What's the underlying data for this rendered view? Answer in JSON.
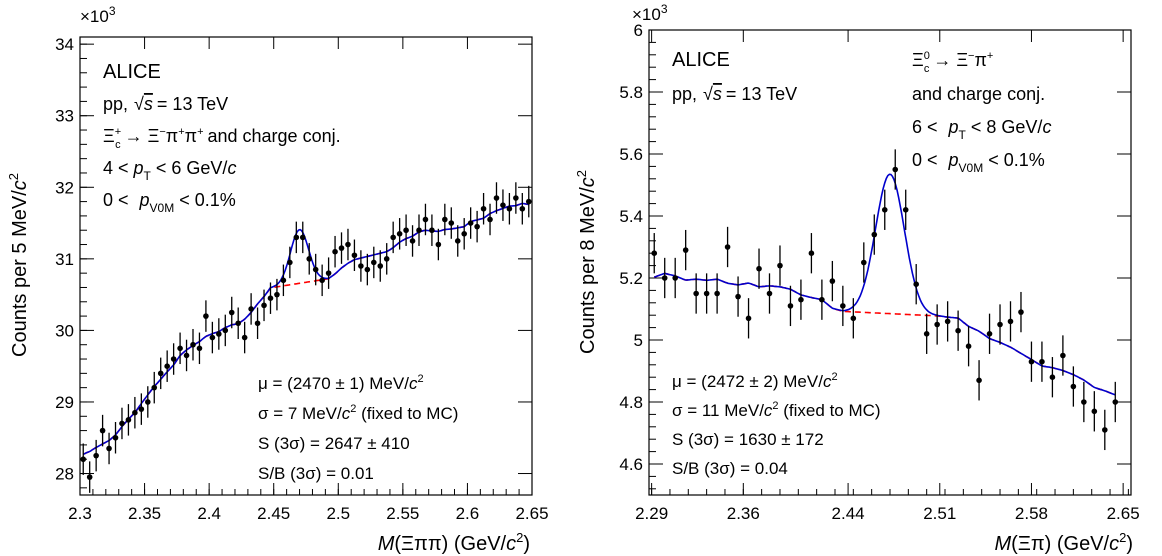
{
  "chart_data": [
    {
      "type": "scatter",
      "xlabel_prefix": "M",
      "xlabel_text": "(Ξππ) (GeV/",
      "xlabel_c": "c",
      "xlabel_pow": "2",
      "xlabel_close": ")",
      "ylabel_text": "Counts per 5 MeV/",
      "ylabel_c": "c",
      "exponent_base": "×10",
      "exponent_pow": "3",
      "xlim": [
        2.3,
        2.65
      ],
      "ylim": [
        27.7,
        34.1
      ],
      "xticks": [
        2.3,
        2.35,
        2.4,
        2.45,
        2.5,
        2.55,
        2.6,
        2.65
      ],
      "xtick_labels": [
        "2.3",
        "2.35",
        "2.4",
        "2.45",
        "2.5",
        "2.55",
        "2.6",
        "2.65"
      ],
      "yticks": [
        28,
        29,
        30,
        31,
        32,
        33,
        34
      ],
      "ytick_labels": [
        "28",
        "29",
        "30",
        "31",
        "32",
        "33",
        "34"
      ],
      "annotations": {
        "experiment": "ALICE",
        "collision": "pp,",
        "energy": "= 13 TeV",
        "decay": "Ξc⁺ → Ξ⁻π⁺π⁺ and charge conj.",
        "pt_range": "4 < pT < 6 GeV/c",
        "mult_range": "0 < pV0M < 0.1%",
        "mu": "μ = (2470 ± 1) MeV/c²",
        "sigma": "σ = 7 MeV/c² (fixed to MC)",
        "signal": "S (3σ) = 2647 ± 410",
        "sb": "S/B (3σ) = 0.01"
      },
      "fit": {
        "mu": 2.47,
        "sigma": 0.007,
        "peak_amplitude": 0.75
      },
      "colors": {
        "data": "#000000",
        "total_fit": "#0000cc",
        "background_fit": "#ff0000"
      },
      "points": [
        {
          "x": 2.3025,
          "y": 28.2,
          "e": 0.22
        },
        {
          "x": 2.3075,
          "y": 27.95,
          "e": 0.22
        },
        {
          "x": 2.3125,
          "y": 28.25,
          "e": 0.22
        },
        {
          "x": 2.3175,
          "y": 28.6,
          "e": 0.22
        },
        {
          "x": 2.3225,
          "y": 28.35,
          "e": 0.22
        },
        {
          "x": 2.3275,
          "y": 28.5,
          "e": 0.22
        },
        {
          "x": 2.3325,
          "y": 28.7,
          "e": 0.22
        },
        {
          "x": 2.3375,
          "y": 28.75,
          "e": 0.22
        },
        {
          "x": 2.3425,
          "y": 28.85,
          "e": 0.22
        },
        {
          "x": 2.3475,
          "y": 28.9,
          "e": 0.22
        },
        {
          "x": 2.3525,
          "y": 29.0,
          "e": 0.22
        },
        {
          "x": 2.3575,
          "y": 29.2,
          "e": 0.22
        },
        {
          "x": 2.3625,
          "y": 29.4,
          "e": 0.22
        },
        {
          "x": 2.3675,
          "y": 29.5,
          "e": 0.22
        },
        {
          "x": 2.3725,
          "y": 29.6,
          "e": 0.22
        },
        {
          "x": 2.3775,
          "y": 29.75,
          "e": 0.22
        },
        {
          "x": 2.3825,
          "y": 29.65,
          "e": 0.22
        },
        {
          "x": 2.3875,
          "y": 29.8,
          "e": 0.22
        },
        {
          "x": 2.3925,
          "y": 29.75,
          "e": 0.22
        },
        {
          "x": 2.3975,
          "y": 30.2,
          "e": 0.22
        },
        {
          "x": 2.4025,
          "y": 29.9,
          "e": 0.22
        },
        {
          "x": 2.4075,
          "y": 29.95,
          "e": 0.22
        },
        {
          "x": 2.4125,
          "y": 30.0,
          "e": 0.22
        },
        {
          "x": 2.4175,
          "y": 30.25,
          "e": 0.22
        },
        {
          "x": 2.4225,
          "y": 30.1,
          "e": 0.22
        },
        {
          "x": 2.4275,
          "y": 29.9,
          "e": 0.22
        },
        {
          "x": 2.4325,
          "y": 30.3,
          "e": 0.22
        },
        {
          "x": 2.4375,
          "y": 30.1,
          "e": 0.22
        },
        {
          "x": 2.4425,
          "y": 30.35,
          "e": 0.22
        },
        {
          "x": 2.4475,
          "y": 30.45,
          "e": 0.22
        },
        {
          "x": 2.4525,
          "y": 30.5,
          "e": 0.22
        },
        {
          "x": 2.4575,
          "y": 30.7,
          "e": 0.22
        },
        {
          "x": 2.4625,
          "y": 30.95,
          "e": 0.22
        },
        {
          "x": 2.4675,
          "y": 31.3,
          "e": 0.22
        },
        {
          "x": 2.4725,
          "y": 31.3,
          "e": 0.22
        },
        {
          "x": 2.4775,
          "y": 31.0,
          "e": 0.22
        },
        {
          "x": 2.4825,
          "y": 30.85,
          "e": 0.22
        },
        {
          "x": 2.4875,
          "y": 30.7,
          "e": 0.22
        },
        {
          "x": 2.4925,
          "y": 30.8,
          "e": 0.22
        },
        {
          "x": 2.4975,
          "y": 31.1,
          "e": 0.22
        },
        {
          "x": 2.5025,
          "y": 31.15,
          "e": 0.22
        },
        {
          "x": 2.5075,
          "y": 31.2,
          "e": 0.22
        },
        {
          "x": 2.5125,
          "y": 31.05,
          "e": 0.22
        },
        {
          "x": 2.5175,
          "y": 30.9,
          "e": 0.22
        },
        {
          "x": 2.5225,
          "y": 30.85,
          "e": 0.22
        },
        {
          "x": 2.5275,
          "y": 30.95,
          "e": 0.22
        },
        {
          "x": 2.5325,
          "y": 30.9,
          "e": 0.22
        },
        {
          "x": 2.5375,
          "y": 31.0,
          "e": 0.22
        },
        {
          "x": 2.5425,
          "y": 31.3,
          "e": 0.22
        },
        {
          "x": 2.5475,
          "y": 31.35,
          "e": 0.22
        },
        {
          "x": 2.5525,
          "y": 31.4,
          "e": 0.22
        },
        {
          "x": 2.5575,
          "y": 31.25,
          "e": 0.22
        },
        {
          "x": 2.5625,
          "y": 31.4,
          "e": 0.22
        },
        {
          "x": 2.5675,
          "y": 31.55,
          "e": 0.22
        },
        {
          "x": 2.5725,
          "y": 31.4,
          "e": 0.22
        },
        {
          "x": 2.5775,
          "y": 31.2,
          "e": 0.22
        },
        {
          "x": 2.5825,
          "y": 31.55,
          "e": 0.22
        },
        {
          "x": 2.5875,
          "y": 31.5,
          "e": 0.22
        },
        {
          "x": 2.5925,
          "y": 31.25,
          "e": 0.22
        },
        {
          "x": 2.5975,
          "y": 31.35,
          "e": 0.22
        },
        {
          "x": 2.6025,
          "y": 31.5,
          "e": 0.22
        },
        {
          "x": 2.6075,
          "y": 31.45,
          "e": 0.22
        },
        {
          "x": 2.6125,
          "y": 31.7,
          "e": 0.22
        },
        {
          "x": 2.6175,
          "y": 31.55,
          "e": 0.22
        },
        {
          "x": 2.6225,
          "y": 31.85,
          "e": 0.22
        },
        {
          "x": 2.6275,
          "y": 31.75,
          "e": 0.22
        },
        {
          "x": 2.6325,
          "y": 31.7,
          "e": 0.22
        },
        {
          "x": 2.6375,
          "y": 31.85,
          "e": 0.22
        },
        {
          "x": 2.6425,
          "y": 31.7,
          "e": 0.22
        },
        {
          "x": 2.6475,
          "y": 31.8,
          "e": 0.22
        }
      ]
    },
    {
      "type": "scatter",
      "xlabel_prefix": "M",
      "xlabel_text": "(Ξπ) (GeV/",
      "xlabel_c": "c",
      "xlabel_pow": "2",
      "xlabel_close": ")",
      "ylabel_text": "Counts per 8 MeV/",
      "ylabel_c": "c",
      "exponent_base": "×10",
      "exponent_pow": "3",
      "xlim": [
        2.288,
        2.656
      ],
      "ylim": [
        4.5,
        6.0
      ],
      "xticks": [
        2.29,
        2.36,
        2.44,
        2.51,
        2.58,
        2.65
      ],
      "xtick_labels": [
        "2.29",
        "2.36",
        "2.44",
        "2.51",
        "2.58",
        "2.65"
      ],
      "yticks": [
        4.6,
        4.8,
        5.0,
        5.2,
        5.4,
        5.6,
        5.8,
        6.0
      ],
      "ytick_labels": [
        "4.6",
        "4.8",
        "5",
        "5.2",
        "5.4",
        "5.6",
        "5.8",
        "6"
      ],
      "annotations": {
        "experiment": "ALICE",
        "collision": "pp,",
        "energy": "= 13 TeV",
        "decay": "Ξc⁰ → Ξ⁻π⁺",
        "conj": "and charge conj.",
        "pt_range": "6 < pT < 8 GeV/c",
        "mult_range": "0 < pV0M < 0.1%",
        "mu": "μ = (2472 ± 2) MeV/c²",
        "sigma": "σ = 11 MeV/c² (fixed to MC)",
        "signal": "S (3σ) = 1630 ± 172",
        "sb": "S/B (3σ) = 0.04"
      },
      "fit": {
        "mu": 2.472,
        "sigma": 0.011,
        "peak_amplitude": 0.45
      },
      "colors": {
        "data": "#000000",
        "total_fit": "#0000cc",
        "background_fit": "#ff0000"
      },
      "points": [
        {
          "x": 2.292,
          "y": 5.28,
          "e": 0.065
        },
        {
          "x": 2.3,
          "y": 5.2,
          "e": 0.065
        },
        {
          "x": 2.308,
          "y": 5.2,
          "e": 0.065
        },
        {
          "x": 2.316,
          "y": 5.29,
          "e": 0.065
        },
        {
          "x": 2.324,
          "y": 5.15,
          "e": 0.065
        },
        {
          "x": 2.332,
          "y": 5.15,
          "e": 0.065
        },
        {
          "x": 2.34,
          "y": 5.15,
          "e": 0.065
        },
        {
          "x": 2.348,
          "y": 5.3,
          "e": 0.065
        },
        {
          "x": 2.356,
          "y": 5.14,
          "e": 0.065
        },
        {
          "x": 2.364,
          "y": 5.07,
          "e": 0.065
        },
        {
          "x": 2.372,
          "y": 5.23,
          "e": 0.065
        },
        {
          "x": 2.38,
          "y": 5.15,
          "e": 0.065
        },
        {
          "x": 2.388,
          "y": 5.24,
          "e": 0.065
        },
        {
          "x": 2.396,
          "y": 5.11,
          "e": 0.065
        },
        {
          "x": 2.404,
          "y": 5.13,
          "e": 0.065
        },
        {
          "x": 2.412,
          "y": 5.28,
          "e": 0.065
        },
        {
          "x": 2.42,
          "y": 5.13,
          "e": 0.065
        },
        {
          "x": 2.428,
          "y": 5.19,
          "e": 0.065
        },
        {
          "x": 2.436,
          "y": 5.11,
          "e": 0.065
        },
        {
          "x": 2.444,
          "y": 5.07,
          "e": 0.065
        },
        {
          "x": 2.452,
          "y": 5.25,
          "e": 0.065
        },
        {
          "x": 2.46,
          "y": 5.34,
          "e": 0.065
        },
        {
          "x": 2.468,
          "y": 5.42,
          "e": 0.065
        },
        {
          "x": 2.476,
          "y": 5.55,
          "e": 0.065
        },
        {
          "x": 2.484,
          "y": 5.42,
          "e": 0.065
        },
        {
          "x": 2.492,
          "y": 5.18,
          "e": 0.065
        },
        {
          "x": 2.5,
          "y": 5.02,
          "e": 0.065
        },
        {
          "x": 2.508,
          "y": 5.05,
          "e": 0.065
        },
        {
          "x": 2.516,
          "y": 5.06,
          "e": 0.065
        },
        {
          "x": 2.524,
          "y": 5.03,
          "e": 0.065
        },
        {
          "x": 2.532,
          "y": 4.98,
          "e": 0.065
        },
        {
          "x": 2.54,
          "y": 4.87,
          "e": 0.065
        },
        {
          "x": 2.548,
          "y": 5.02,
          "e": 0.065
        },
        {
          "x": 2.556,
          "y": 5.05,
          "e": 0.065
        },
        {
          "x": 2.564,
          "y": 5.06,
          "e": 0.065
        },
        {
          "x": 2.572,
          "y": 5.09,
          "e": 0.065
        },
        {
          "x": 2.58,
          "y": 4.93,
          "e": 0.065
        },
        {
          "x": 2.588,
          "y": 4.93,
          "e": 0.065
        },
        {
          "x": 2.596,
          "y": 4.88,
          "e": 0.065
        },
        {
          "x": 2.604,
          "y": 4.95,
          "e": 0.065
        },
        {
          "x": 2.612,
          "y": 4.85,
          "e": 0.065
        },
        {
          "x": 2.62,
          "y": 4.8,
          "e": 0.065
        },
        {
          "x": 2.628,
          "y": 4.77,
          "e": 0.065
        },
        {
          "x": 2.636,
          "y": 4.71,
          "e": 0.065
        },
        {
          "x": 2.644,
          "y": 4.8,
          "e": 0.065
        }
      ]
    }
  ]
}
